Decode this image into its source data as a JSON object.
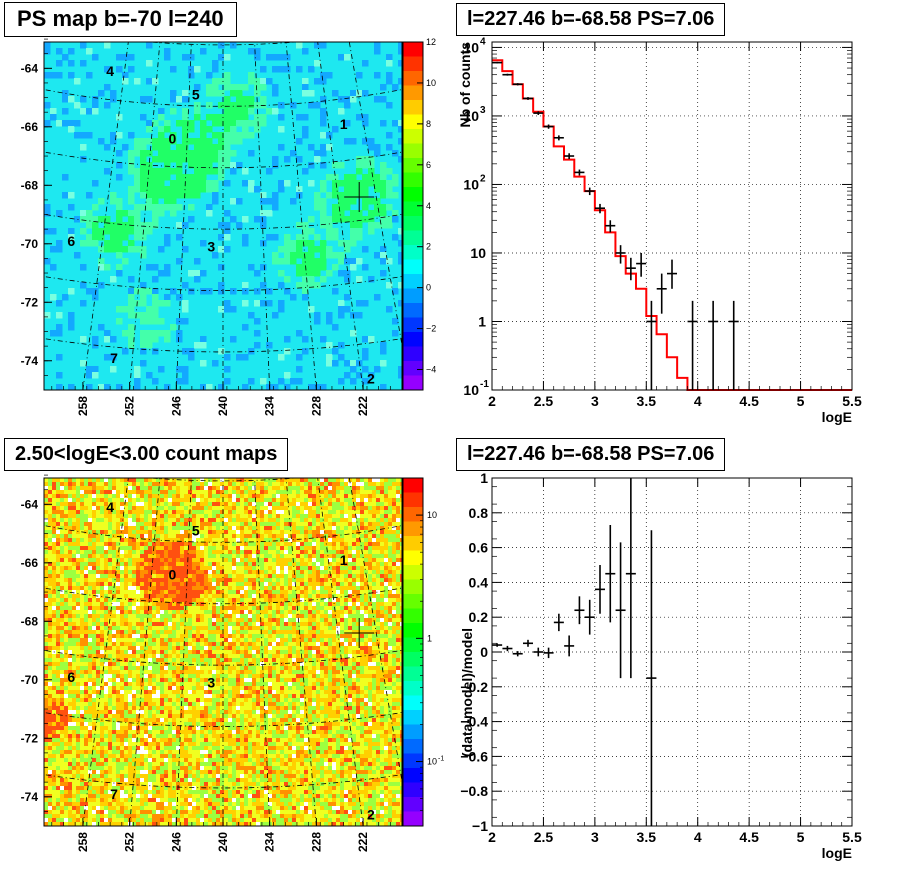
{
  "panels": {
    "ps_map": {
      "title": "PS map b=-70 l=240",
      "type": "heatmap",
      "y_ticks": [
        "-64",
        "-66",
        "-68",
        "-70",
        "-72",
        "-74"
      ],
      "x_ticks": [
        "258",
        "252",
        "246",
        "240",
        "234",
        "228",
        "222"
      ],
      "source_labels": [
        "0",
        "1",
        "2",
        "3",
        "4",
        "5",
        "6",
        "7"
      ],
      "colorbar_ticks": [
        "12",
        "10",
        "8",
        "6",
        "4",
        "2",
        "0",
        "−2",
        "−4"
      ],
      "colorbar_values": [
        12,
        10,
        8,
        6,
        4,
        2,
        0,
        -2,
        -4
      ],
      "crosshair_label": "+"
    },
    "count_map": {
      "title": "2.50<logE<3.00 count maps",
      "type": "heatmap",
      "y_ticks": [
        "-64",
        "-66",
        "-68",
        "-70",
        "-72",
        "-74"
      ],
      "x_ticks": [
        "258",
        "252",
        "246",
        "240",
        "234",
        "228",
        "222"
      ],
      "source_labels": [
        "0",
        "1",
        "2",
        "3",
        "4",
        "5",
        "6",
        "7"
      ],
      "colorbar_major": "10",
      "colorbar_mid": "1",
      "colorbar_minor_base": "10",
      "colorbar_minor_exp": "-1",
      "colorbar_scale": "log"
    },
    "spectrum": {
      "title": "l=227.46 b=-68.58 PS=7.06",
      "ylabel": "Nb of counts",
      "xlabel": "logE",
      "x_ticks": [
        "2",
        "2.5",
        "3",
        "3.5",
        "4",
        "4.5",
        "5",
        "5.5"
      ],
      "y_ticks": [
        {
          "base": "10",
          "exp": "-1"
        },
        {
          "base": "1",
          "exp": ""
        },
        {
          "base": "10",
          "exp": ""
        },
        {
          "base": "10",
          "exp": "2"
        },
        {
          "base": "10",
          "exp": "3"
        },
        {
          "base": "10",
          "exp": "4"
        }
      ]
    },
    "residual": {
      "title": "l=227.46 b=-68.58 PS=7.06",
      "ylabel": "(data-model)/model",
      "xlabel": "logE",
      "x_ticks": [
        "2",
        "2.5",
        "3",
        "3.5",
        "4",
        "4.5",
        "5",
        "5.5"
      ],
      "y_ticks": [
        "1",
        "0.8",
        "0.6",
        "0.4",
        "0.2",
        "0",
        "−0.2",
        "−0.4",
        "−0.6",
        "−0.8",
        "−1"
      ]
    }
  },
  "chart_data": [
    {
      "type": "heatmap",
      "title": "PS map b=-70 l=240",
      "xlim": [
        263,
        217
      ],
      "ylim": [
        -75,
        -63.1
      ],
      "x_ticks": [
        258,
        252,
        246,
        240,
        234,
        228,
        222
      ],
      "y_ticks": [
        -64,
        -66,
        -68,
        -70,
        -72,
        -74
      ],
      "zlim": [
        -5,
        12
      ],
      "grid": true,
      "sources": [
        {
          "label": "0",
          "l": 246.5,
          "b": -66.4
        },
        {
          "label": "1",
          "l": 224.5,
          "b": -65.9
        },
        {
          "label": "2",
          "l": 221.0,
          "b": -74.6
        },
        {
          "label": "3",
          "l": 241.5,
          "b": -70.1
        },
        {
          "label": "4",
          "l": 254.5,
          "b": -64.1
        },
        {
          "label": "5",
          "l": 243.5,
          "b": -64.9
        },
        {
          "label": "6",
          "l": 259.5,
          "b": -69.9
        },
        {
          "label": "7",
          "l": 254.0,
          "b": -73.9
        }
      ],
      "crosshair": {
        "l": 222.5,
        "b": -68.4
      }
    },
    {
      "type": "heatmap",
      "title": "2.50<logE<3.00 count maps",
      "xlim": [
        263,
        217
      ],
      "ylim": [
        -75,
        -63.1
      ],
      "x_ticks": [
        258,
        252,
        246,
        240,
        234,
        228,
        222
      ],
      "y_ticks": [
        -64,
        -66,
        -68,
        -70,
        -72,
        -74
      ],
      "zscale": "log",
      "zlim": [
        0.03,
        20
      ],
      "grid": true,
      "sources": [
        {
          "label": "0",
          "l": 246.5,
          "b": -66.4
        },
        {
          "label": "1",
          "l": 224.5,
          "b": -65.9
        },
        {
          "label": "2",
          "l": 221.0,
          "b": -74.6
        },
        {
          "label": "3",
          "l": 241.5,
          "b": -70.1
        },
        {
          "label": "4",
          "l": 254.5,
          "b": -64.1
        },
        {
          "label": "5",
          "l": 243.5,
          "b": -64.9
        },
        {
          "label": "6",
          "l": 259.5,
          "b": -69.9
        },
        {
          "label": "7",
          "l": 254.0,
          "b": -73.9
        }
      ],
      "crosshair": {
        "l": 222.5,
        "b": -68.4
      }
    },
    {
      "type": "line",
      "title": "l=227.46 b=-68.58 PS=7.06",
      "xlabel": "logE",
      "ylabel": "Nb of counts",
      "xlim": [
        2,
        5.5
      ],
      "ylim": [
        0.1,
        12000
      ],
      "yscale": "log",
      "grid": true,
      "model_step_edges": [
        2.0,
        2.1,
        2.2,
        2.3,
        2.4,
        2.5,
        2.6,
        2.7,
        2.8,
        2.9,
        3.0,
        3.1,
        3.2,
        3.3,
        3.4,
        3.5,
        3.6,
        3.7,
        3.8,
        3.9,
        4.0,
        4.1,
        4.2,
        4.3,
        4.4,
        4.5,
        4.6,
        4.7,
        4.8,
        4.9,
        5.0,
        5.1,
        5.2,
        5.3,
        5.4,
        5.5
      ],
      "model_step_values": [
        6500,
        4500,
        2900,
        1800,
        1150,
        700,
        360,
        230,
        130,
        80,
        42,
        20,
        9,
        5,
        3,
        1.2,
        0.65,
        0.3,
        0.15,
        0.1,
        0.1,
        0.1,
        0.1,
        0.1,
        0.1,
        0.1,
        0.1,
        0.1,
        0.1,
        0.1,
        0.1,
        0.1,
        0.1,
        0.1,
        0.1
      ],
      "data_points": [
        {
          "x": 2.05,
          "y": 6000,
          "ylo": 5850,
          "yhi": 6150
        },
        {
          "x": 2.15,
          "y": 4000,
          "ylo": 3870,
          "yhi": 4130
        },
        {
          "x": 2.25,
          "y": 2900,
          "ylo": 2790,
          "yhi": 3010
        },
        {
          "x": 2.35,
          "y": 1800,
          "ylo": 1715,
          "yhi": 1885
        },
        {
          "x": 2.45,
          "y": 1100,
          "ylo": 1035,
          "yhi": 1165
        },
        {
          "x": 2.55,
          "y": 700,
          "ylo": 650,
          "yhi": 750
        },
        {
          "x": 2.65,
          "y": 480,
          "ylo": 440,
          "yhi": 520
        },
        {
          "x": 2.75,
          "y": 260,
          "ylo": 235,
          "yhi": 285
        },
        {
          "x": 2.85,
          "y": 150,
          "ylo": 135,
          "yhi": 165
        },
        {
          "x": 2.95,
          "y": 80,
          "ylo": 70,
          "yhi": 90
        },
        {
          "x": 3.05,
          "y": 45,
          "ylo": 38,
          "yhi": 52
        },
        {
          "x": 3.15,
          "y": 25,
          "ylo": 20,
          "yhi": 30
        },
        {
          "x": 3.25,
          "y": 10,
          "ylo": 7,
          "yhi": 13
        },
        {
          "x": 3.35,
          "y": 6,
          "ylo": 4,
          "yhi": 8.5
        },
        {
          "x": 3.45,
          "y": 7,
          "ylo": 4.5,
          "yhi": 10
        },
        {
          "x": 3.55,
          "y": 1,
          "ylo": 0.1,
          "yhi": 2
        },
        {
          "x": 3.65,
          "y": 3,
          "ylo": 1.3,
          "yhi": 5
        },
        {
          "x": 3.75,
          "y": 5,
          "ylo": 3,
          "yhi": 8
        },
        {
          "x": 3.95,
          "y": 1,
          "ylo": 0.1,
          "yhi": 2
        },
        {
          "x": 4.15,
          "y": 1,
          "ylo": 0.1,
          "yhi": 2
        },
        {
          "x": 4.35,
          "y": 1,
          "ylo": 0.1,
          "yhi": 2
        }
      ],
      "series": [
        {
          "name": "",
          "color": "#ff0000"
        },
        {
          "name": "",
          "color": "#000000"
        }
      ]
    },
    {
      "type": "scatter",
      "title": "l=227.46 b=-68.58 PS=7.06",
      "xlabel": "logE",
      "ylabel": "(data-model)/model",
      "xlim": [
        2,
        5.5
      ],
      "ylim": [
        -1,
        1
      ],
      "grid": true,
      "points": [
        {
          "x": 2.05,
          "y": 0.04,
          "ylo": 0.03,
          "yhi": 0.05
        },
        {
          "x": 2.15,
          "y": 0.02,
          "ylo": 0.005,
          "yhi": 0.035
        },
        {
          "x": 2.25,
          "y": -0.01,
          "ylo": -0.025,
          "yhi": 0.005
        },
        {
          "x": 2.35,
          "y": 0.05,
          "ylo": 0.03,
          "yhi": 0.07
        },
        {
          "x": 2.45,
          "y": 0.0,
          "ylo": -0.025,
          "yhi": 0.025
        },
        {
          "x": 2.55,
          "y": -0.005,
          "ylo": -0.035,
          "yhi": 0.025
        },
        {
          "x": 2.65,
          "y": 0.17,
          "ylo": 0.12,
          "yhi": 0.22
        },
        {
          "x": 2.75,
          "y": 0.035,
          "ylo": -0.025,
          "yhi": 0.095
        },
        {
          "x": 2.85,
          "y": 0.24,
          "ylo": 0.16,
          "yhi": 0.32
        },
        {
          "x": 2.95,
          "y": 0.2,
          "ylo": 0.1,
          "yhi": 0.3
        },
        {
          "x": 3.05,
          "y": 0.36,
          "ylo": 0.22,
          "yhi": 0.5
        },
        {
          "x": 3.15,
          "y": 0.45,
          "ylo": 0.17,
          "yhi": 0.73
        },
        {
          "x": 3.25,
          "y": 0.24,
          "ylo": -0.15,
          "yhi": 0.63
        },
        {
          "x": 3.35,
          "y": 0.45,
          "ylo": -0.15,
          "yhi": 1.0
        },
        {
          "x": 3.55,
          "y": -0.15,
          "ylo": -1.0,
          "yhi": 0.7
        }
      ],
      "series": [
        {
          "name": "",
          "color": "#000000"
        }
      ]
    }
  ]
}
